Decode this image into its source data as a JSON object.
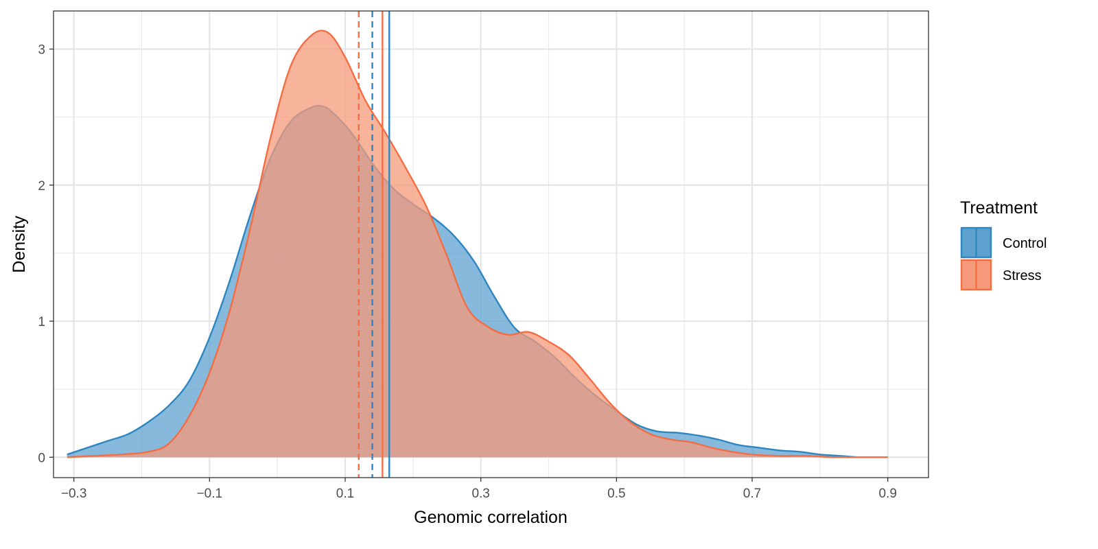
{
  "chart_data": {
    "type": "area",
    "title": "",
    "xlabel": "Genomic correlation",
    "ylabel": "Density",
    "xlim": [
      -0.33,
      0.96
    ],
    "ylim": [
      -0.15,
      3.28
    ],
    "x_ticks": [
      -0.3,
      -0.1,
      0.1,
      0.3,
      0.5,
      0.7,
      0.9
    ],
    "x_tick_labels": [
      "−0.3",
      "−0.1",
      "0.1",
      "0.3",
      "0.5",
      "0.7",
      "0.9"
    ],
    "y_ticks": [
      0,
      1,
      2,
      3
    ],
    "y_tick_labels": [
      "0",
      "1",
      "2",
      "3"
    ],
    "grid": true,
    "legend": {
      "title": "Treatment",
      "position": "right",
      "entries": [
        "Control",
        "Stress"
      ]
    },
    "series": [
      {
        "name": "Control",
        "line_color": "#2E86C1",
        "fill_color": "#5DA2CF",
        "mean": 0.165,
        "median": 0.14,
        "x": [
          -0.31,
          -0.28,
          -0.25,
          -0.22,
          -0.19,
          -0.16,
          -0.13,
          -0.1,
          -0.07,
          -0.04,
          -0.01,
          0.02,
          0.05,
          0.065,
          0.08,
          0.11,
          0.14,
          0.17,
          0.2,
          0.23,
          0.26,
          0.29,
          0.32,
          0.35,
          0.38,
          0.41,
          0.44,
          0.47,
          0.5,
          0.53,
          0.56,
          0.59,
          0.62,
          0.65,
          0.68,
          0.71,
          0.74,
          0.77,
          0.8,
          0.83,
          0.86,
          0.9
        ],
        "y": [
          0.02,
          0.07,
          0.12,
          0.17,
          0.26,
          0.38,
          0.56,
          0.88,
          1.3,
          1.78,
          2.2,
          2.47,
          2.57,
          2.58,
          2.54,
          2.38,
          2.16,
          1.98,
          1.86,
          1.76,
          1.63,
          1.44,
          1.18,
          0.95,
          0.85,
          0.73,
          0.58,
          0.45,
          0.34,
          0.24,
          0.19,
          0.18,
          0.16,
          0.13,
          0.09,
          0.07,
          0.05,
          0.04,
          0.02,
          0.01,
          0.0,
          0.0
        ]
      },
      {
        "name": "Stress",
        "line_color": "#F46D43",
        "fill_color": "#F5997A",
        "mean": 0.155,
        "median": 0.12,
        "x": [
          -0.31,
          -0.27,
          -0.23,
          -0.19,
          -0.16,
          -0.13,
          -0.1,
          -0.07,
          -0.04,
          -0.01,
          0.02,
          0.05,
          0.075,
          0.1,
          0.13,
          0.16,
          0.19,
          0.22,
          0.25,
          0.28,
          0.31,
          0.34,
          0.37,
          0.4,
          0.43,
          0.46,
          0.49,
          0.52,
          0.55,
          0.58,
          0.61,
          0.64,
          0.67,
          0.7,
          0.74,
          0.78,
          0.82,
          0.86,
          0.9
        ],
        "y": [
          0.0,
          0.01,
          0.02,
          0.04,
          0.1,
          0.3,
          0.62,
          1.08,
          1.68,
          2.35,
          2.88,
          3.1,
          3.12,
          2.94,
          2.62,
          2.38,
          2.12,
          1.84,
          1.48,
          1.1,
          0.96,
          0.9,
          0.92,
          0.85,
          0.75,
          0.58,
          0.4,
          0.26,
          0.17,
          0.13,
          0.11,
          0.07,
          0.04,
          0.02,
          0.01,
          0.01,
          0.0,
          0.0,
          0.0
        ]
      }
    ]
  }
}
